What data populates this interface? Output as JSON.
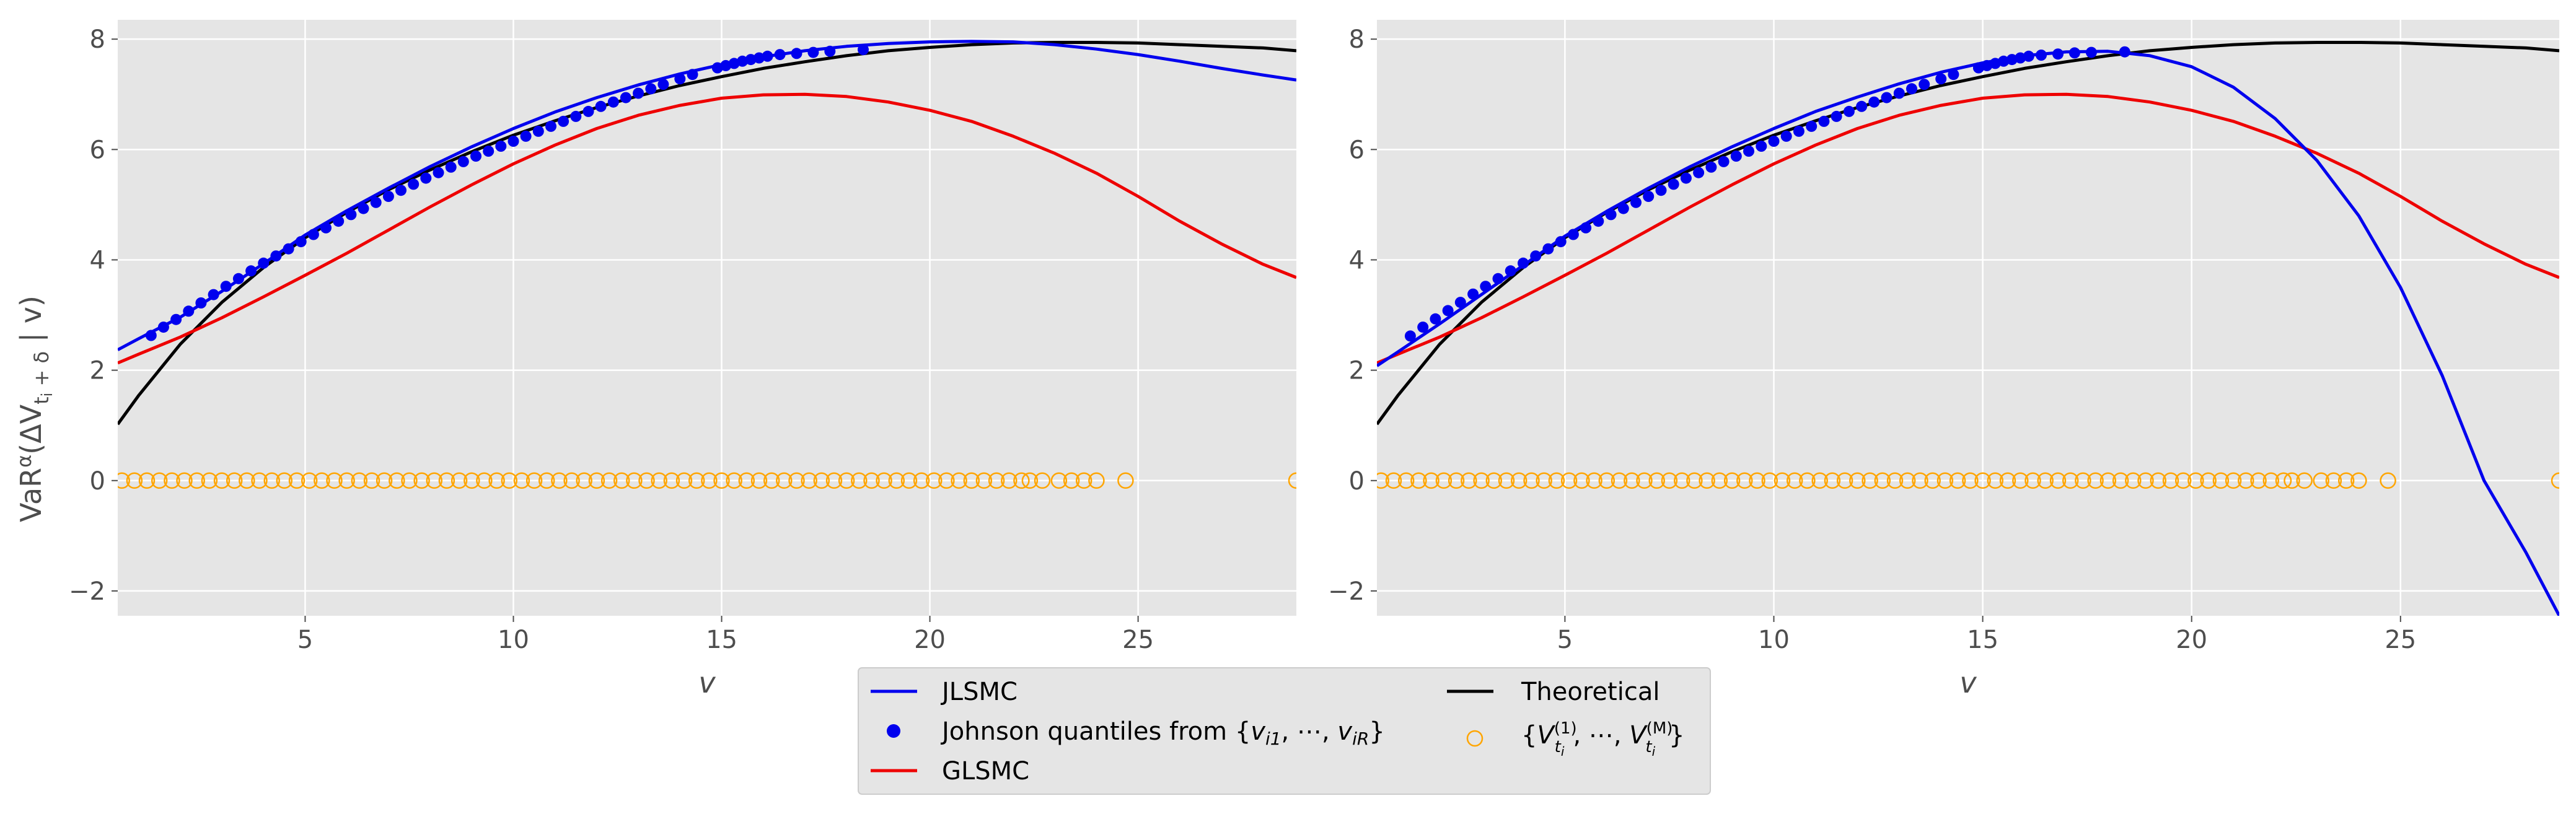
{
  "figure": {
    "ylabel_main": "VaR",
    "ylabel_sup": "α",
    "ylabel_rest": "(ΔV",
    "ylabel_sub": "t",
    "ylabel_subsub": "i",
    "ylabel_sub2": " + δ",
    "ylabel_tail": " | v)"
  },
  "legend": {
    "items": [
      {
        "label": "JLSMC",
        "kind": "line",
        "color": "#0000ee"
      },
      {
        "label": "Johnson quantiles from {v",
        "kind": "dot",
        "color": "#0000ee"
      },
      {
        "label": "GLSMC",
        "kind": "line",
        "color": "#ee0000"
      },
      {
        "label": "Theoretical",
        "kind": "line",
        "color": "#000000"
      },
      {
        "label": "{V",
        "kind": "ring",
        "color": "#ffa500"
      }
    ],
    "johnson_parts": {
      "pre": "Johnson quantiles from {",
      "v1": "v",
      "s1": "i1",
      "mid": ", ⋯, ",
      "v2": "v",
      "s2": "iR",
      "post": "}"
    },
    "sample_parts": {
      "open": "{",
      "V1": "V",
      "sup1": "(1)",
      "sub1": "t",
      "subsub1": "i",
      "mid": ", ⋯, ",
      "V2": "V",
      "sup2": "(M)",
      "sub2": "t",
      "subsub2": "i",
      "close": "}"
    }
  },
  "colors": {
    "panel_bg": "#e5e5e5",
    "grid": "#ffffff",
    "jlsmc": "#0000ee",
    "glsmc": "#ee0000",
    "theory": "#000000",
    "samples": "#ffa500"
  },
  "chart_data": [
    {
      "type": "line",
      "panel": "left",
      "xlabel": "v",
      "xlim": [
        0.5,
        28.8
      ],
      "ylim": [
        -2.45,
        8.35
      ],
      "xticks": [
        "5",
        "10",
        "15",
        "20",
        "25"
      ],
      "yticks": [
        "−2",
        "0",
        "2",
        "4",
        "6",
        "8"
      ],
      "grid": true,
      "series": [
        {
          "name": "JLSMC",
          "type": "line",
          "x": [
            0.5,
            1,
            2,
            3,
            4,
            5,
            6,
            7,
            8,
            9,
            10,
            11,
            12,
            13,
            14,
            15,
            16,
            17,
            18,
            19,
            20,
            21,
            22,
            23,
            24,
            25,
            26,
            27,
            28,
            28.8
          ],
          "y": [
            2.37,
            2.57,
            2.96,
            3.43,
            3.93,
            4.45,
            4.89,
            5.3,
            5.69,
            6.05,
            6.38,
            6.68,
            6.94,
            7.17,
            7.37,
            7.54,
            7.68,
            7.79,
            7.87,
            7.92,
            7.95,
            7.96,
            7.95,
            7.9,
            7.82,
            7.72,
            7.6,
            7.47,
            7.35,
            7.26
          ]
        },
        {
          "name": "Johnson quantiles from {vi1, ⋯, viR}",
          "type": "scatter",
          "x": [
            1.3,
            1.6,
            1.9,
            2.2,
            2.5,
            2.8,
            3.1,
            3.4,
            3.7,
            4.0,
            4.3,
            4.6,
            4.9,
            5.2,
            5.5,
            5.8,
            6.1,
            6.4,
            6.7,
            7.0,
            7.3,
            7.6,
            7.9,
            8.2,
            8.5,
            8.8,
            9.1,
            9.4,
            9.7,
            10.0,
            10.3,
            10.6,
            10.9,
            11.2,
            11.5,
            11.8,
            12.1,
            12.4,
            12.7,
            13.0,
            13.3,
            13.6,
            14.0,
            14.3,
            14.9,
            15.1,
            15.3,
            15.5,
            15.7,
            15.9,
            16.1,
            16.4,
            16.8,
            17.2,
            17.6,
            18.4
          ],
          "y": [
            2.63,
            2.78,
            2.92,
            3.07,
            3.22,
            3.37,
            3.52,
            3.66,
            3.8,
            3.94,
            4.07,
            4.2,
            4.33,
            4.46,
            4.58,
            4.7,
            4.82,
            4.93,
            5.04,
            5.15,
            5.26,
            5.37,
            5.48,
            5.58,
            5.68,
            5.78,
            5.88,
            5.97,
            6.06,
            6.15,
            6.24,
            6.33,
            6.42,
            6.51,
            6.6,
            6.69,
            6.78,
            6.86,
            6.94,
            7.02,
            7.1,
            7.18,
            7.28,
            7.36,
            7.48,
            7.52,
            7.56,
            7.6,
            7.63,
            7.66,
            7.69,
            7.72,
            7.74,
            7.76,
            7.78,
            7.81
          ]
        },
        {
          "name": "GLSMC",
          "type": "line",
          "x": [
            0.5,
            1,
            2,
            3,
            4,
            5,
            6,
            7,
            8,
            9,
            10,
            11,
            12,
            13,
            14,
            15,
            16,
            17,
            18,
            19,
            20,
            21,
            22,
            23,
            24,
            25,
            26,
            27,
            28,
            28.8
          ],
          "y": [
            2.13,
            2.29,
            2.6,
            2.95,
            3.33,
            3.72,
            4.12,
            4.54,
            4.96,
            5.36,
            5.74,
            6.08,
            6.38,
            6.62,
            6.8,
            6.93,
            6.99,
            7.0,
            6.96,
            6.86,
            6.71,
            6.51,
            6.24,
            5.93,
            5.57,
            5.15,
            4.7,
            4.29,
            3.92,
            3.68
          ]
        },
        {
          "name": "Theoretical",
          "type": "line",
          "x": [
            0.5,
            1,
            2,
            3,
            4,
            5,
            6,
            7,
            8,
            9,
            10,
            11,
            12,
            13,
            14,
            15,
            16,
            17,
            18,
            19,
            20,
            21,
            22,
            23,
            24,
            25,
            26,
            27,
            28,
            28.8
          ],
          "y": [
            1.02,
            1.54,
            2.47,
            3.23,
            3.86,
            4.4,
            4.86,
            5.27,
            5.63,
            5.96,
            6.26,
            6.52,
            6.76,
            6.97,
            7.16,
            7.32,
            7.47,
            7.59,
            7.7,
            7.79,
            7.85,
            7.9,
            7.93,
            7.94,
            7.94,
            7.93,
            7.9,
            7.87,
            7.84,
            7.79
          ]
        },
        {
          "name": "{Vti(1), ⋯, Vti(M)}",
          "type": "scatter",
          "x": [
            0.6,
            0.9,
            1.2,
            1.5,
            1.8,
            2.1,
            2.4,
            2.7,
            3.0,
            3.3,
            3.6,
            3.9,
            4.2,
            4.5,
            4.8,
            5.1,
            5.4,
            5.7,
            6.0,
            6.3,
            6.6,
            6.9,
            7.2,
            7.5,
            7.8,
            8.1,
            8.4,
            8.7,
            9.0,
            9.3,
            9.6,
            9.9,
            10.2,
            10.5,
            10.8,
            11.1,
            11.4,
            11.7,
            12.0,
            12.3,
            12.6,
            12.9,
            13.2,
            13.5,
            13.8,
            14.1,
            14.4,
            14.7,
            15.0,
            15.3,
            15.6,
            15.9,
            16.2,
            16.5,
            16.8,
            17.1,
            17.4,
            17.7,
            18.0,
            18.3,
            18.6,
            18.9,
            19.2,
            19.5,
            19.8,
            20.1,
            20.4,
            20.7,
            21.0,
            21.3,
            21.6,
            21.9,
            22.2,
            22.4,
            22.7,
            23.1,
            23.4,
            23.7,
            24.0,
            24.7,
            28.8
          ],
          "y": [
            0,
            0,
            0,
            0,
            0,
            0,
            0,
            0,
            0,
            0,
            0,
            0,
            0,
            0,
            0,
            0,
            0,
            0,
            0,
            0,
            0,
            0,
            0,
            0,
            0,
            0,
            0,
            0,
            0,
            0,
            0,
            0,
            0,
            0,
            0,
            0,
            0,
            0,
            0,
            0,
            0,
            0,
            0,
            0,
            0,
            0,
            0,
            0,
            0,
            0,
            0,
            0,
            0,
            0,
            0,
            0,
            0,
            0,
            0,
            0,
            0,
            0,
            0,
            0,
            0,
            0,
            0,
            0,
            0,
            0,
            0,
            0,
            0,
            0,
            0,
            0,
            0,
            0,
            0,
            0,
            0
          ]
        }
      ]
    },
    {
      "type": "line",
      "panel": "right",
      "xlabel": "v",
      "xlim": [
        0.5,
        28.8
      ],
      "ylim": [
        -2.45,
        8.35
      ],
      "xticks": [
        "5",
        "10",
        "15",
        "20",
        "25"
      ],
      "yticks": [
        "−2",
        "0",
        "2",
        "4",
        "6",
        "8"
      ],
      "grid": true,
      "series": [
        {
          "name": "JLSMC",
          "type": "line",
          "x": [
            0.5,
            1,
            2,
            3,
            4,
            5,
            6,
            7,
            8,
            9,
            10,
            11,
            12,
            13,
            14,
            15,
            16,
            17,
            18,
            19,
            20,
            21,
            22,
            23,
            24,
            25,
            26,
            27,
            28,
            28.8
          ],
          "y": [
            2.08,
            2.33,
            2.84,
            3.37,
            3.9,
            4.43,
            4.88,
            5.3,
            5.69,
            6.05,
            6.38,
            6.69,
            6.95,
            7.19,
            7.4,
            7.57,
            7.7,
            7.77,
            7.78,
            7.7,
            7.5,
            7.13,
            6.56,
            5.8,
            4.8,
            3.5,
            1.9,
            0.0,
            -1.3,
            -2.45
          ]
        },
        {
          "name": "Johnson quantiles from {vi1, ⋯, viR}",
          "type": "scatter",
          "x": [
            1.3,
            1.6,
            1.9,
            2.2,
            2.5,
            2.8,
            3.1,
            3.4,
            3.7,
            4.0,
            4.3,
            4.6,
            4.9,
            5.2,
            5.5,
            5.8,
            6.1,
            6.4,
            6.7,
            7.0,
            7.3,
            7.6,
            7.9,
            8.2,
            8.5,
            8.8,
            9.1,
            9.4,
            9.7,
            10.0,
            10.3,
            10.6,
            10.9,
            11.2,
            11.5,
            11.8,
            12.1,
            12.4,
            12.7,
            13.0,
            13.3,
            13.6,
            14.0,
            14.3,
            14.9,
            15.1,
            15.3,
            15.5,
            15.7,
            15.9,
            16.1,
            16.4,
            16.8,
            17.2,
            17.6,
            18.4
          ],
          "y": [
            2.62,
            2.78,
            2.93,
            3.08,
            3.23,
            3.38,
            3.52,
            3.66,
            3.8,
            3.94,
            4.07,
            4.2,
            4.33,
            4.46,
            4.58,
            4.7,
            4.82,
            4.93,
            5.04,
            5.15,
            5.26,
            5.37,
            5.48,
            5.58,
            5.68,
            5.78,
            5.88,
            5.97,
            6.06,
            6.15,
            6.24,
            6.33,
            6.42,
            6.51,
            6.6,
            6.69,
            6.78,
            6.86,
            6.94,
            7.02,
            7.1,
            7.18,
            7.28,
            7.36,
            7.48,
            7.52,
            7.56,
            7.6,
            7.63,
            7.66,
            7.69,
            7.71,
            7.73,
            7.75,
            7.76,
            7.77
          ]
        },
        {
          "name": "GLSMC",
          "type": "line",
          "x": [
            0.5,
            1,
            2,
            3,
            4,
            5,
            6,
            7,
            8,
            9,
            10,
            11,
            12,
            13,
            14,
            15,
            16,
            17,
            18,
            19,
            20,
            21,
            22,
            23,
            24,
            25,
            26,
            27,
            28,
            28.8
          ],
          "y": [
            2.13,
            2.29,
            2.6,
            2.95,
            3.33,
            3.72,
            4.12,
            4.54,
            4.96,
            5.36,
            5.74,
            6.08,
            6.38,
            6.62,
            6.8,
            6.93,
            6.99,
            7.0,
            6.96,
            6.86,
            6.71,
            6.51,
            6.24,
            5.93,
            5.57,
            5.15,
            4.7,
            4.29,
            3.92,
            3.68
          ]
        },
        {
          "name": "Theoretical",
          "type": "line",
          "x": [
            0.5,
            1,
            2,
            3,
            4,
            5,
            6,
            7,
            8,
            9,
            10,
            11,
            12,
            13,
            14,
            15,
            16,
            17,
            18,
            19,
            20,
            21,
            22,
            23,
            24,
            25,
            26,
            27,
            28,
            28.8
          ],
          "y": [
            1.02,
            1.54,
            2.47,
            3.23,
            3.86,
            4.4,
            4.86,
            5.27,
            5.63,
            5.96,
            6.26,
            6.52,
            6.76,
            6.97,
            7.16,
            7.32,
            7.47,
            7.59,
            7.7,
            7.79,
            7.85,
            7.9,
            7.93,
            7.94,
            7.94,
            7.93,
            7.9,
            7.87,
            7.84,
            7.79
          ]
        },
        {
          "name": "{Vti(1), ⋯, Vti(M)}",
          "type": "scatter",
          "x": [
            0.6,
            0.9,
            1.2,
            1.5,
            1.8,
            2.1,
            2.4,
            2.7,
            3.0,
            3.3,
            3.6,
            3.9,
            4.2,
            4.5,
            4.8,
            5.1,
            5.4,
            5.7,
            6.0,
            6.3,
            6.6,
            6.9,
            7.2,
            7.5,
            7.8,
            8.1,
            8.4,
            8.7,
            9.0,
            9.3,
            9.6,
            9.9,
            10.2,
            10.5,
            10.8,
            11.1,
            11.4,
            11.7,
            12.0,
            12.3,
            12.6,
            12.9,
            13.2,
            13.5,
            13.8,
            14.1,
            14.4,
            14.7,
            15.0,
            15.3,
            15.6,
            15.9,
            16.2,
            16.5,
            16.8,
            17.1,
            17.4,
            17.7,
            18.0,
            18.3,
            18.6,
            18.9,
            19.2,
            19.5,
            19.8,
            20.1,
            20.4,
            20.7,
            21.0,
            21.3,
            21.6,
            21.9,
            22.2,
            22.4,
            22.7,
            23.1,
            23.4,
            23.7,
            24.0,
            24.7,
            28.8
          ],
          "y": [
            0,
            0,
            0,
            0,
            0,
            0,
            0,
            0,
            0,
            0,
            0,
            0,
            0,
            0,
            0,
            0,
            0,
            0,
            0,
            0,
            0,
            0,
            0,
            0,
            0,
            0,
            0,
            0,
            0,
            0,
            0,
            0,
            0,
            0,
            0,
            0,
            0,
            0,
            0,
            0,
            0,
            0,
            0,
            0,
            0,
            0,
            0,
            0,
            0,
            0,
            0,
            0,
            0,
            0,
            0,
            0,
            0,
            0,
            0,
            0,
            0,
            0,
            0,
            0,
            0,
            0,
            0,
            0,
            0,
            0,
            0,
            0,
            0,
            0,
            0,
            0,
            0,
            0,
            0,
            0,
            0
          ]
        }
      ]
    }
  ]
}
